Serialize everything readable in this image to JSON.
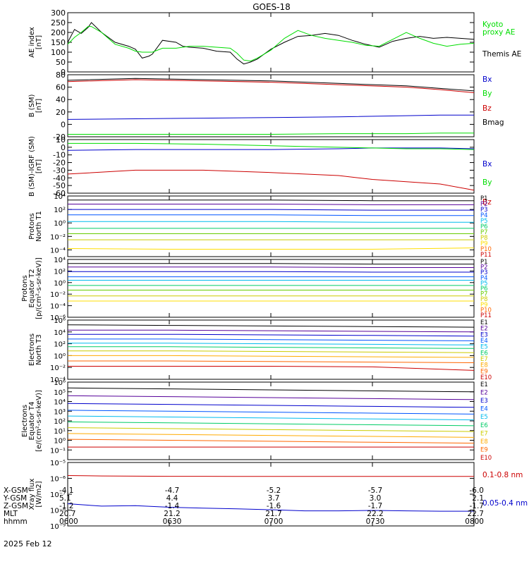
{
  "title": "GOES-18",
  "date_label": "2025 Feb 12",
  "colors": {
    "black": "#000000",
    "blue": "#0000cc",
    "green": "#00dd00",
    "red": "#cc0000"
  },
  "chart_data": [
    {
      "id": "ae",
      "type": "line",
      "ylabel": [
        "AE index",
        "[nT]"
      ],
      "yscale": "linear",
      "ylim": [
        0,
        300
      ],
      "yticks": [
        "0",
        "50",
        "100",
        "150",
        "200",
        "250",
        "300"
      ],
      "legend": [
        {
          "text": "Kyoto",
          "color": "#00dd00"
        },
        {
          "text": "proxy AE",
          "color": "#00dd00"
        },
        {
          "text": "Themis AE",
          "color": "#000000"
        }
      ],
      "x": [
        0,
        1,
        2,
        3,
        3.5,
        5,
        7,
        9,
        10,
        11,
        12,
        12.5,
        14,
        16,
        17,
        18,
        20,
        22,
        24,
        25,
        26,
        27,
        28,
        30,
        32,
        34,
        36,
        38,
        40,
        42,
        44,
        46,
        48,
        50,
        52,
        54,
        56,
        58,
        60
      ],
      "series": [
        {
          "name": "Themis AE",
          "color": "#000000",
          "values": [
            150,
            215,
            195,
            225,
            250,
            200,
            150,
            130,
            115,
            70,
            80,
            90,
            160,
            150,
            130,
            125,
            120,
            105,
            100,
            65,
            40,
            50,
            65,
            115,
            150,
            180,
            185,
            195,
            185,
            160,
            140,
            125,
            155,
            170,
            180,
            170,
            175,
            170,
            165
          ]
        },
        {
          "name": "Kyoto proxy AE",
          "color": "#00dd00",
          "values": [
            140,
            175,
            200,
            230,
            230,
            200,
            140,
            120,
            105,
            100,
            100,
            100,
            120,
            120,
            125,
            130,
            130,
            125,
            120,
            95,
            60,
            55,
            70,
            110,
            170,
            210,
            185,
            170,
            160,
            150,
            135,
            130,
            165,
            200,
            170,
            145,
            130,
            140,
            145
          ]
        }
      ]
    },
    {
      "id": "bsm",
      "type": "line",
      "ylabel": [
        "B (SM)",
        "[nT]"
      ],
      "yscale": "linear",
      "ylim": [
        -20,
        80
      ],
      "yticks": [
        "-20",
        "0",
        "20",
        "40",
        "60",
        "80"
      ],
      "legend": [
        {
          "text": "Bx",
          "color": "#0000cc"
        },
        {
          "text": "By",
          "color": "#00dd00"
        },
        {
          "text": "Bz",
          "color": "#cc0000"
        },
        {
          "text": "Bmag",
          "color": "#000000"
        }
      ],
      "x": [
        0,
        10,
        20,
        30,
        40,
        50,
        55,
        60
      ],
      "series": [
        {
          "name": "Bx",
          "color": "#0000cc",
          "values": [
            8,
            9,
            10,
            11,
            12,
            14,
            15,
            15
          ]
        },
        {
          "name": "By",
          "color": "#00dd00",
          "values": [
            -16,
            -16,
            -16,
            -16,
            -15,
            -15,
            -14,
            -14
          ]
        },
        {
          "name": "Bz",
          "color": "#cc0000",
          "values": [
            69,
            72,
            70,
            68,
            64,
            60,
            56,
            51
          ]
        },
        {
          "name": "Bmag",
          "color": "#000000",
          "values": [
            71,
            74,
            72,
            70,
            66,
            62,
            58,
            54
          ]
        }
      ]
    },
    {
      "id": "bigrf",
      "type": "line",
      "ylabel": [
        "B (SM)-IGRF (SM)",
        "[nT]"
      ],
      "yscale": "linear",
      "ylim": [
        -60,
        10
      ],
      "yticks": [
        "-60",
        "-50",
        "-40",
        "-30",
        "-20",
        "-10",
        "0",
        "10"
      ],
      "legend": [
        {
          "text": "Bx",
          "color": "#0000cc"
        },
        {
          "text": "By",
          "color": "#00dd00"
        },
        {
          "text": "Bz",
          "color": "#cc0000"
        }
      ],
      "x": [
        0,
        10,
        20,
        30,
        40,
        45,
        50,
        55,
        60
      ],
      "series": [
        {
          "name": "Bx",
          "color": "#0000cc",
          "values": [
            -4,
            -3,
            -3,
            -3,
            -2,
            -1,
            -1,
            -1,
            -2
          ]
        },
        {
          "name": "By",
          "color": "#00dd00",
          "values": [
            5,
            5,
            4,
            2,
            0,
            -1,
            -2,
            -2,
            -3
          ]
        },
        {
          "name": "Bz",
          "color": "#cc0000",
          "values": [
            -35,
            -30,
            -30,
            -33,
            -37,
            -42,
            -45,
            -48,
            -56
          ]
        }
      ]
    },
    {
      "id": "pt1",
      "type": "line",
      "ylabel": [
        "Protons",
        "North T1"
      ],
      "yscale": "log",
      "ylim": [
        -5,
        4
      ],
      "ytick_exponents": [
        4,
        2,
        0,
        -2,
        -4
      ],
      "series": [
        {
          "name": "P1",
          "color": "#000000",
          "log_values": [
            3.4,
            3.4,
            3.4,
            3.3,
            3.3
          ]
        },
        {
          "name": "P2",
          "color": "#550099",
          "log_values": [
            2.8,
            2.8,
            2.8,
            2.7,
            2.7
          ]
        },
        {
          "name": "P3",
          "color": "#0000cc",
          "log_values": [
            2.0,
            2.0,
            2.0,
            1.9,
            1.9
          ]
        },
        {
          "name": "P4",
          "color": "#0055ff",
          "log_values": [
            1.2,
            1.2,
            1.2,
            1.1,
            1.1
          ]
        },
        {
          "name": "P5",
          "color": "#00bbee",
          "log_values": [
            0.2,
            0.2,
            0.2,
            0.1,
            0.1
          ]
        },
        {
          "name": "P6",
          "color": "#00cc66",
          "log_values": [
            -0.8,
            -0.8,
            -0.8,
            -0.8,
            -0.8
          ]
        },
        {
          "name": "P7",
          "color": "#66cc00",
          "log_values": [
            -1.6,
            -1.6,
            -1.6,
            -1.6,
            -1.6
          ]
        },
        {
          "name": "P8",
          "color": "#cccc00",
          "log_values": [
            -2.5,
            -2.5,
            -2.5,
            -2.5,
            -2.5
          ]
        },
        {
          "name": "P9",
          "color": "#ffdd00",
          "log_values": [
            -3.8,
            -3.9,
            -3.9,
            -3.9,
            -3.7
          ]
        },
        {
          "name": "P10",
          "color": "#ff6600",
          "log_values": [
            null,
            null,
            null,
            null,
            null
          ]
        },
        {
          "name": "P11",
          "color": "#cc0000",
          "log_values": [
            null,
            null,
            null,
            null,
            null
          ]
        }
      ]
    },
    {
      "id": "pt2",
      "type": "line",
      "ylabel": [
        "Protons",
        "Equator T2",
        "[p/(cm²-s-sr-keV)]"
      ],
      "yscale": "log",
      "ylim": [
        -6,
        4
      ],
      "ytick_exponents": [
        4,
        2,
        0,
        -2,
        -4,
        -6
      ],
      "series": [
        {
          "name": "P1",
          "color": "#000000",
          "log_values": [
            3.3,
            3.3,
            3.3,
            3.2,
            3.2
          ]
        },
        {
          "name": "P2",
          "color": "#550099",
          "log_values": [
            2.7,
            2.7,
            2.7,
            2.6,
            2.6
          ]
        },
        {
          "name": "P3",
          "color": "#0000cc",
          "log_values": [
            1.9,
            1.9,
            1.9,
            1.8,
            1.8
          ]
        },
        {
          "name": "P4",
          "color": "#0055ff",
          "log_values": [
            1.0,
            1.0,
            1.0,
            1.0,
            1.0
          ]
        },
        {
          "name": "P5",
          "color": "#00bbee",
          "log_values": [
            0.4,
            0.4,
            0.4,
            0.4,
            0.4
          ]
        },
        {
          "name": "P6",
          "color": "#00cc66",
          "log_values": [
            -0.5,
            -0.5,
            -0.5,
            -0.5,
            -0.5
          ]
        },
        {
          "name": "P7",
          "color": "#66cc00",
          "log_values": [
            -1.3,
            -1.3,
            -1.3,
            -1.3,
            -1.3
          ]
        },
        {
          "name": "P8",
          "color": "#cccc00",
          "log_values": [
            -2.3,
            -2.3,
            -2.3,
            -2.3,
            -2.3
          ]
        },
        {
          "name": "P9",
          "color": "#ffdd00",
          "log_values": [
            -3.2,
            -3.2,
            -3.2,
            -3.2,
            -3.2
          ]
        },
        {
          "name": "P10",
          "color": "#ff6600",
          "log_values": [
            null,
            null,
            null,
            null,
            null
          ]
        },
        {
          "name": "P11",
          "color": "#cc0000",
          "log_values": [
            null,
            null,
            null,
            null,
            null
          ]
        }
      ]
    },
    {
      "id": "et3",
      "type": "line",
      "ylabel": [
        "Electrons",
        "North T3"
      ],
      "yscale": "log",
      "ylim": [
        -4,
        6
      ],
      "ytick_exponents": [
        6,
        4,
        2,
        0,
        -2,
        -4
      ],
      "series": [
        {
          "name": "E1",
          "color": "#000000",
          "log_values": [
            5.2,
            5.1,
            5.0,
            4.9,
            4.8
          ]
        },
        {
          "name": "E2",
          "color": "#550099",
          "log_values": [
            4.3,
            4.3,
            4.2,
            4.1,
            4.0
          ]
        },
        {
          "name": "E3",
          "color": "#0000cc",
          "log_values": [
            3.6,
            3.6,
            3.5,
            3.4,
            3.3
          ]
        },
        {
          "name": "E4",
          "color": "#0055ff",
          "log_values": [
            2.8,
            2.8,
            2.7,
            2.6,
            2.5
          ]
        },
        {
          "name": "E5",
          "color": "#00bbee",
          "log_values": [
            2.1,
            2.1,
            2.0,
            1.9,
            1.8
          ]
        },
        {
          "name": "E6",
          "color": "#00cc66",
          "log_values": [
            1.5,
            1.5,
            1.4,
            1.3,
            1.2
          ]
        },
        {
          "name": "E7",
          "color": "#cccc00",
          "log_values": [
            0.8,
            0.8,
            0.7,
            0.6,
            0.5
          ]
        },
        {
          "name": "E8",
          "color": "#ffaa00",
          "log_values": [
            0.0,
            0.0,
            -0.1,
            -0.2,
            -0.3
          ]
        },
        {
          "name": "E9",
          "color": "#ff6600",
          "log_values": [
            -0.9,
            -0.9,
            -1.0,
            -1.1,
            -1.2
          ]
        },
        {
          "name": "E10",
          "color": "#cc0000",
          "log_values": [
            -1.8,
            -1.8,
            -1.8,
            -1.9,
            -2.5
          ]
        }
      ]
    },
    {
      "id": "et4",
      "type": "line",
      "ylabel": [
        "Electrons",
        "Equator T4",
        "[e/(cm²-s-sr-keV)]"
      ],
      "yscale": "log",
      "ylim": [
        -2,
        6
      ],
      "ytick_exponents": [
        6,
        5,
        4,
        3,
        2,
        1,
        0,
        -1
      ],
      "series": [
        {
          "name": "E1",
          "color": "#000000",
          "log_values": [
            5.4,
            5.3,
            5.2,
            5.1,
            5.0
          ]
        },
        {
          "name": "E2",
          "color": "#550099",
          "log_values": [
            4.6,
            4.5,
            4.4,
            4.3,
            4.2
          ]
        },
        {
          "name": "E3",
          "color": "#0000cc",
          "log_values": [
            3.8,
            3.7,
            3.6,
            3.5,
            3.4
          ]
        },
        {
          "name": "E4",
          "color": "#0055ff",
          "log_values": [
            3.1,
            3.0,
            2.9,
            2.8,
            2.7
          ]
        },
        {
          "name": "E5",
          "color": "#00bbee",
          "log_values": [
            2.5,
            2.4,
            2.3,
            2.2,
            2.1
          ]
        },
        {
          "name": "E6",
          "color": "#00cc66",
          "log_values": [
            1.9,
            1.8,
            1.7,
            1.6,
            1.5
          ]
        },
        {
          "name": "E7",
          "color": "#cccc00",
          "log_values": [
            1.3,
            1.2,
            1.1,
            1.0,
            0.9
          ]
        },
        {
          "name": "E8",
          "color": "#ffaa00",
          "log_values": [
            0.7,
            0.6,
            0.5,
            0.4,
            0.3
          ]
        },
        {
          "name": "E9",
          "color": "#ff6600",
          "log_values": [
            0.1,
            0.0,
            -0.1,
            -0.2,
            -0.3
          ]
        },
        {
          "name": "E10",
          "color": "#cc0000",
          "log_values": [
            -0.7,
            -0.7,
            -0.7,
            -0.7,
            -0.7
          ]
        }
      ]
    },
    {
      "id": "xray",
      "type": "line",
      "ylabel": [
        "Xray flux",
        "[W/m2]"
      ],
      "yscale": "log",
      "ylim": [
        -9,
        -5
      ],
      "ytick_exponents": [
        -5,
        -6,
        -7,
        -8,
        -9
      ],
      "legend": [
        {
          "text": "0.1-0.8 nm",
          "color": "#cc0000"
        },
        {
          "text": "0.05-0.4 nm",
          "color": "#0000cc"
        }
      ],
      "x": [
        0,
        5,
        10,
        15,
        20,
        25,
        30,
        35,
        40,
        45,
        50,
        55,
        60
      ],
      "series": [
        {
          "name": "0.1-0.8 nm",
          "color": "#cc0000",
          "log_values": [
            -5.82,
            -5.85,
            -5.86,
            -5.87,
            -5.87,
            -5.88,
            -5.88,
            -5.88,
            -5.88,
            -5.88,
            -5.88,
            -5.88,
            -5.88
          ]
        },
        {
          "name": "0.05-0.4 nm",
          "color": "#0000cc",
          "log_values": [
            -7.6,
            -7.75,
            -7.72,
            -7.82,
            -7.88,
            -7.92,
            -7.98,
            -8.05,
            -8.05,
            -8.02,
            -8.05,
            -8.07,
            -8.07
          ]
        }
      ]
    }
  ],
  "orbit": {
    "row_labels": [
      "X-GSM",
      "Y-GSM",
      "Z-GSM",
      "MLT",
      "hhmm"
    ],
    "columns": [
      [
        "-4.1",
        "5.1",
        "-1.2",
        "20.7",
        "0600"
      ],
      [
        "-4.7",
        "4.4",
        "-1.4",
        "21.2",
        "0630"
      ],
      [
        "-5.2",
        "3.7",
        "-1.6",
        "21.7",
        "0700"
      ],
      [
        "-5.7",
        "3.0",
        "-1.7",
        "22.2",
        "0730"
      ],
      [
        "-6.0",
        "2.1",
        "-1.7",
        "22.7",
        "0800"
      ]
    ]
  }
}
